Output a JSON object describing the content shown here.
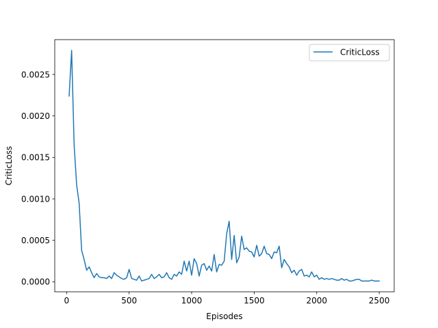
{
  "chart_data": {
    "type": "line",
    "title": "",
    "xlabel": "Episodes",
    "ylabel": "CriticLoss",
    "xlim": [
      -95,
      2620
    ],
    "ylim": [
      -0.00012,
      0.00292
    ],
    "xticks": [
      0,
      500,
      1000,
      1500,
      2000,
      2500
    ],
    "xtick_labels": [
      "0",
      "500",
      "1000",
      "1500",
      "2000",
      "2500"
    ],
    "yticks": [
      0.0,
      0.0005,
      0.001,
      0.0015,
      0.002,
      0.0025
    ],
    "ytick_labels": [
      "0.0000",
      "0.0005",
      "0.0010",
      "0.0015",
      "0.0020",
      "0.0025"
    ],
    "grid": false,
    "legend": {
      "placement": "top-right"
    },
    "colors": {
      "series": "#1f77b4"
    },
    "series": [
      {
        "name": "CriticLoss",
        "x": [
          20,
          40,
          60,
          80,
          100,
          120,
          140,
          160,
          180,
          200,
          220,
          240,
          260,
          280,
          300,
          320,
          340,
          360,
          380,
          400,
          420,
          440,
          460,
          480,
          500,
          520,
          540,
          560,
          580,
          600,
          620,
          640,
          660,
          680,
          700,
          720,
          740,
          760,
          780,
          800,
          820,
          840,
          860,
          880,
          900,
          920,
          940,
          960,
          980,
          1000,
          1020,
          1040,
          1060,
          1080,
          1100,
          1120,
          1140,
          1160,
          1180,
          1200,
          1220,
          1240,
          1260,
          1280,
          1300,
          1320,
          1340,
          1360,
          1380,
          1400,
          1420,
          1440,
          1460,
          1480,
          1500,
          1520,
          1540,
          1560,
          1580,
          1600,
          1620,
          1640,
          1660,
          1680,
          1700,
          1720,
          1740,
          1760,
          1780,
          1800,
          1820,
          1840,
          1860,
          1880,
          1900,
          1920,
          1940,
          1960,
          1980,
          2000,
          2020,
          2040,
          2060,
          2080,
          2100,
          2120,
          2140,
          2160,
          2180,
          2200,
          2220,
          2240,
          2260,
          2280,
          2300,
          2320,
          2340,
          2360,
          2380,
          2400,
          2420,
          2440,
          2460,
          2480,
          2500
        ],
        "values": [
          0.00224,
          0.00279,
          0.00165,
          0.00117,
          0.00095,
          0.00038,
          0.00027,
          0.00014,
          0.00018,
          0.00011,
          5e-05,
          0.0001,
          6e-05,
          5e-05,
          5e-05,
          4e-05,
          7e-05,
          4e-05,
          0.00011,
          8e-05,
          6e-05,
          4e-05,
          3e-05,
          5e-05,
          0.00015,
          4e-05,
          3e-05,
          2e-05,
          7e-05,
          1e-05,
          2e-05,
          3e-05,
          4e-05,
          9e-05,
          4e-05,
          6e-05,
          9e-05,
          5e-05,
          6e-05,
          0.00011,
          5e-05,
          3e-05,
          9e-05,
          7e-05,
          0.00012,
          9e-05,
          0.00025,
          0.00013,
          0.00025,
          8e-05,
          0.00028,
          0.00022,
          7e-05,
          0.0002,
          0.00022,
          0.00014,
          0.00019,
          0.00013,
          0.00033,
          0.00012,
          0.00021,
          0.0002,
          0.00025,
          0.00058,
          0.00073,
          0.00027,
          0.00056,
          0.00023,
          0.0003,
          0.00055,
          0.00039,
          0.00041,
          0.00037,
          0.00036,
          0.0003,
          0.00044,
          0.00031,
          0.00034,
          0.00043,
          0.00034,
          0.00033,
          0.00028,
          0.00036,
          0.00035,
          0.00043,
          0.00017,
          0.00027,
          0.00022,
          0.00018,
          0.00011,
          0.00014,
          8e-05,
          0.00013,
          0.00015,
          7e-05,
          8e-05,
          6e-05,
          0.00012,
          6e-05,
          8e-05,
          3e-05,
          5e-05,
          3e-05,
          4e-05,
          3e-05,
          4e-05,
          3e-05,
          2e-05,
          2e-05,
          4e-05,
          2e-05,
          3e-05,
          1e-05,
          1e-05,
          2e-05,
          3e-05,
          3e-05,
          1e-05,
          1e-05,
          1e-05,
          1e-05,
          2e-05,
          1e-05,
          1e-05,
          1e-05
        ]
      }
    ]
  }
}
